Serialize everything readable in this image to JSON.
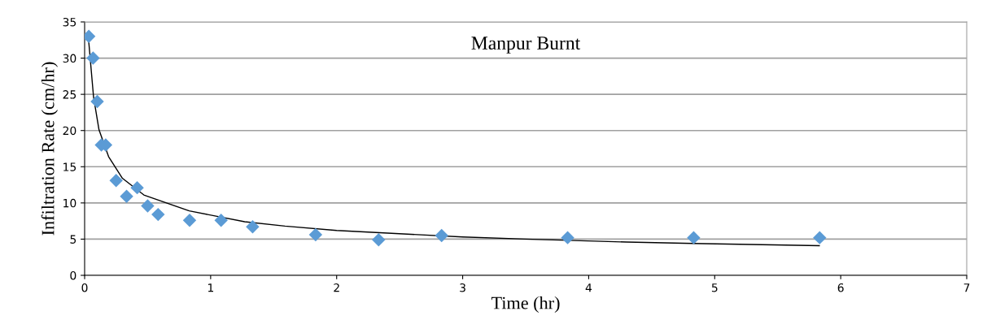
{
  "chart_data": {
    "type": "scatter",
    "title": "Manpur Burnt",
    "xlabel": "Time (hr)",
    "ylabel": "Infiltration Rate (cm/hr)",
    "xlim": [
      0,
      7
    ],
    "xticks": [
      0,
      1,
      2,
      3,
      4,
      5,
      6,
      7
    ],
    "ylim": [
      0,
      35
    ],
    "yticks": [
      0,
      5,
      10,
      15,
      20,
      25,
      30,
      35
    ],
    "grid": "y",
    "series": [
      {
        "marker": "diamond",
        "color": "#5b9bd5",
        "x": [
          0.033,
          0.067,
          0.1,
          0.133,
          0.167,
          0.25,
          0.333,
          0.417,
          0.5,
          0.583,
          0.833,
          1.083,
          1.333,
          1.833,
          2.333,
          2.833,
          3.833,
          4.833,
          5.833
        ],
        "values": [
          33,
          30,
          24,
          18,
          18,
          13.1,
          10.9,
          12.1,
          9.6,
          8.4,
          7.6,
          7.6,
          6.7,
          5.6,
          4.9,
          5.5,
          5.2,
          5.2,
          5.2
        ]
      },
      {
        "type": "line",
        "color": "#000000",
        "x": [
          0.032,
          0.071,
          0.114,
          0.19,
          0.3,
          0.47,
          0.83,
          1.27,
          1.59,
          2.0,
          3.0,
          3.5,
          4.3,
          4.83,
          5.83
        ],
        "values": [
          32.4,
          24.6,
          20.1,
          16.4,
          13.4,
          11.1,
          8.9,
          7.4,
          6.8,
          6.2,
          5.3,
          5.0,
          4.6,
          4.4,
          4.1
        ]
      }
    ]
  }
}
